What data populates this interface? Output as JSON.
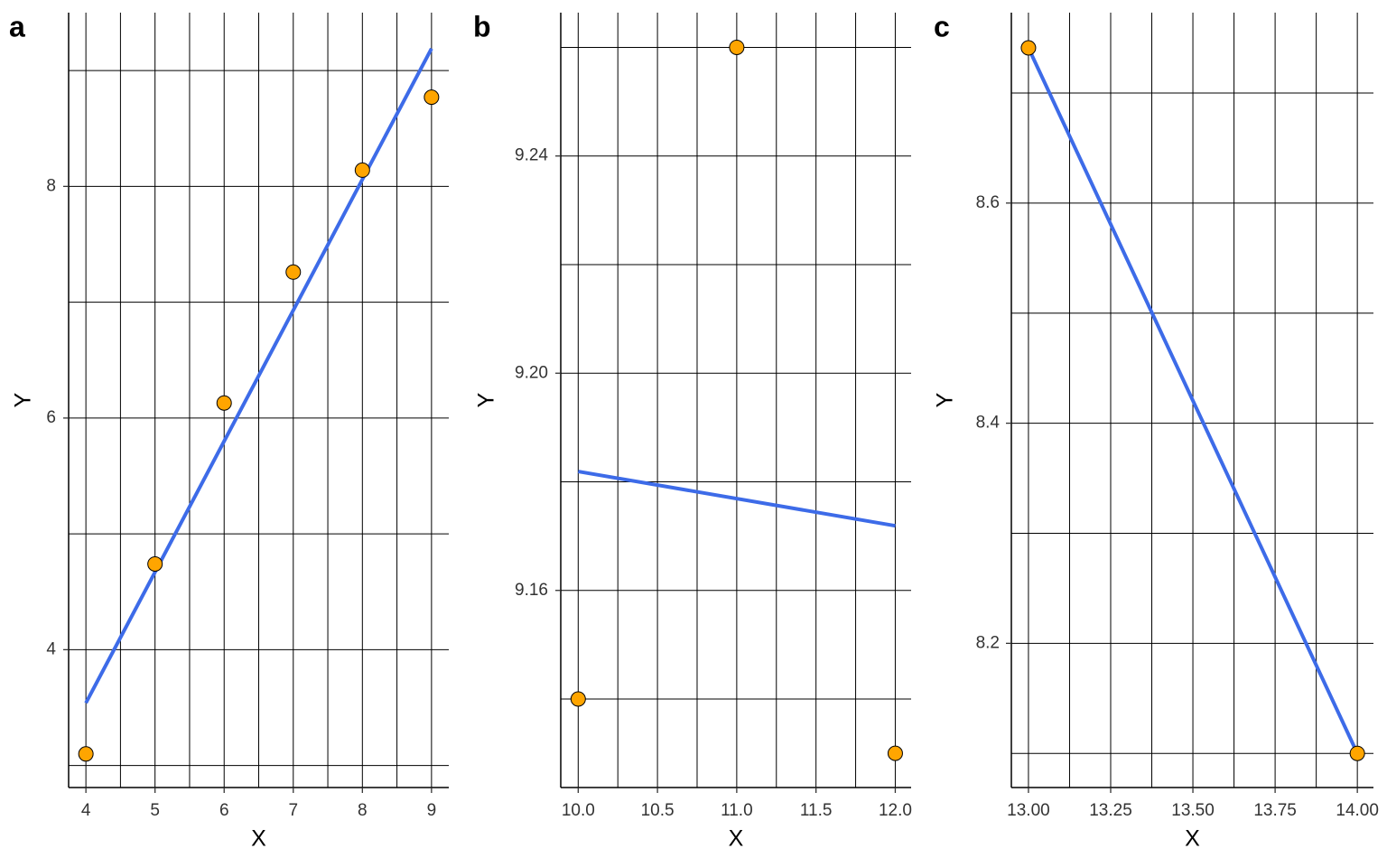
{
  "chart_data": [
    {
      "type": "scatter",
      "label": "a",
      "x_label": "X",
      "y_label": "Y",
      "points": {
        "x": [
          4,
          5,
          6,
          7,
          8,
          9
        ],
        "y": [
          3.1,
          4.74,
          6.13,
          7.26,
          8.14,
          8.77
        ],
        "color": "#ffa500"
      },
      "line": {
        "x": [
          4,
          9
        ],
        "y": [
          3.54,
          9.19
        ],
        "color": "#3d6be8"
      },
      "xlim": [
        3.75,
        9.25
      ],
      "ylim": [
        2.81,
        9.5
      ],
      "xticks": [
        4,
        5,
        6,
        7,
        8,
        9
      ],
      "yticks": [
        4,
        6,
        8
      ],
      "xgrid": [
        4,
        4.5,
        5,
        5.5,
        6,
        6.5,
        7,
        7.5,
        8,
        8.5,
        9
      ],
      "ygrid": [
        3,
        4,
        5,
        6,
        7,
        8,
        9
      ],
      "grid": true
    },
    {
      "type": "scatter",
      "label": "b",
      "x_label": "X",
      "y_label": "Y",
      "points": {
        "x": [
          10,
          11,
          12
        ],
        "y": [
          9.14,
          9.26,
          9.13
        ],
        "color": "#ffa500"
      },
      "line": {
        "x": [
          10,
          12
        ],
        "y": [
          9.1819,
          9.1719
        ],
        "color": "#3d6be8"
      },
      "xlim": [
        9.89,
        12.1
      ],
      "ylim": [
        9.1237,
        9.2664
      ],
      "xticks": [
        {
          "value": 10,
          "label": "10.0"
        },
        {
          "value": 10.5,
          "label": "10.5"
        },
        {
          "value": 11,
          "label": "11.0"
        },
        {
          "value": 11.5,
          "label": "11.5"
        },
        {
          "value": 12,
          "label": "12.0"
        }
      ],
      "yticks": [
        9.16,
        {
          "value": 9.2,
          "label": "9.20"
        },
        9.24
      ],
      "xgrid": [
        10,
        10.25,
        10.5,
        10.75,
        11,
        11.25,
        11.5,
        11.75,
        12
      ],
      "ygrid": [
        9.14,
        9.16,
        9.18,
        9.2,
        9.22,
        9.24,
        9.26
      ],
      "grid": true
    },
    {
      "type": "scatter",
      "label": "c",
      "x_label": "X",
      "y_label": "Y",
      "points": {
        "x": [
          13,
          14
        ],
        "y": [
          8.741,
          8.1
        ],
        "color": "#ffa500"
      },
      "line": {
        "x": [
          13,
          14
        ],
        "y": [
          8.741,
          8.1
        ],
        "color": "#3d6be8"
      },
      "xlim": [
        12.948,
        14.049
      ],
      "ylim": [
        8.069,
        8.773
      ],
      "xticks": [
        {
          "value": 13,
          "label": "13.00"
        },
        {
          "value": 13.25,
          "label": "13.25"
        },
        {
          "value": 13.5,
          "label": "13.50"
        },
        {
          "value": 13.75,
          "label": "13.75"
        },
        {
          "value": 14,
          "label": "14.00"
        }
      ],
      "yticks": [
        8.2,
        8.4,
        8.6
      ],
      "xgrid": [
        13,
        13.125,
        13.25,
        13.375,
        13.5,
        13.625,
        13.75,
        13.875,
        14
      ],
      "ygrid": [
        8.1,
        8.2,
        8.3,
        8.4,
        8.5,
        8.6,
        8.7
      ],
      "grid": true
    }
  ]
}
